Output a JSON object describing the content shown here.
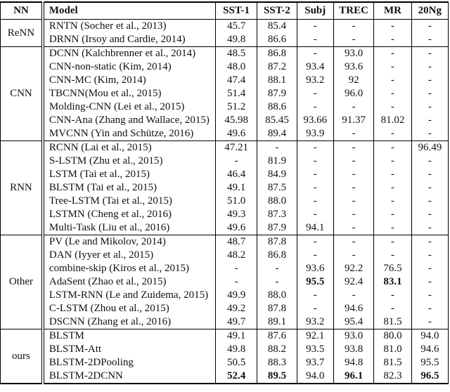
{
  "table": {
    "headers": [
      "NN",
      "Model",
      "SST-1",
      "SST-2",
      "Subj",
      "TREC",
      "MR",
      "20Ng"
    ],
    "groups": [
      {
        "nn": "ReNN",
        "rows": [
          {
            "model": "RNTN (Socher et al., 2013)",
            "values": [
              "45.7",
              "85.4",
              "-",
              "-",
              "-",
              "-"
            ],
            "bold": []
          },
          {
            "model": "DRNN (Irsoy and Cardie, 2014)",
            "values": [
              "49.8",
              "86.6",
              "-",
              "-",
              "-",
              "-"
            ],
            "bold": []
          }
        ]
      },
      {
        "nn": "CNN",
        "rows": [
          {
            "model": "DCNN (Kalchbrenner et al., 2014)",
            "values": [
              "48.5",
              "86.8",
              "-",
              "93.0",
              "-",
              "-"
            ],
            "bold": []
          },
          {
            "model": "CNN-non-static (Kim, 2014)",
            "values": [
              "48.0",
              "87.2",
              "93.4",
              "93.6",
              "-",
              "-"
            ],
            "bold": []
          },
          {
            "model": "CNN-MC (Kim, 2014)",
            "values": [
              "47.4",
              "88.1",
              "93.2",
              "92",
              "-",
              "-"
            ],
            "bold": []
          },
          {
            "model": "TBCNN(Mou et al., 2015)",
            "values": [
              "51.4",
              "87.9",
              "-",
              "96.0",
              "-",
              "-"
            ],
            "bold": []
          },
          {
            "model": "Molding-CNN (Lei et al., 2015)",
            "values": [
              "51.2",
              "88.6",
              "-",
              "-",
              "-",
              "-"
            ],
            "bold": []
          },
          {
            "model": "CNN-Ana (Zhang and Wallace, 2015)",
            "values": [
              "45.98",
              "85.45",
              "93.66",
              "91.37",
              "81.02",
              "-"
            ],
            "bold": []
          },
          {
            "model": "MVCNN (Yin and Schütze, 2016)",
            "values": [
              "49.6",
              "89.4",
              "93.9",
              "-",
              "-",
              "-"
            ],
            "bold": []
          }
        ]
      },
      {
        "nn": "RNN",
        "rows": [
          {
            "model": "RCNN (Lai et al., 2015)",
            "values": [
              "47.21",
              "-",
              "-",
              "-",
              "-",
              "96.49"
            ],
            "bold": []
          },
          {
            "model": "S-LSTM (Zhu et al., 2015)",
            "values": [
              "-",
              "81.9",
              "-",
              "-",
              "-",
              "-"
            ],
            "bold": []
          },
          {
            "model": "LSTM (Tai et al., 2015)",
            "values": [
              "46.4",
              "84.9",
              "-",
              "-",
              "-",
              "-"
            ],
            "bold": []
          },
          {
            "model": "BLSTM (Tai et al., 2015)",
            "values": [
              "49.1",
              "87.5",
              "-",
              "-",
              "-",
              "-"
            ],
            "bold": []
          },
          {
            "model": "Tree-LSTM (Tai et al., 2015)",
            "values": [
              "51.0",
              "88.0",
              "-",
              "-",
              "-",
              "-"
            ],
            "bold": []
          },
          {
            "model": "LSTMN (Cheng et al., 2016)",
            "values": [
              "49.3",
              "87.3",
              "-",
              "-",
              "-",
              "-"
            ],
            "bold": []
          },
          {
            "model": "Multi-Task (Liu et al., 2016)",
            "values": [
              "49.6",
              "87.9",
              "94.1",
              "-",
              "-",
              "-"
            ],
            "bold": []
          }
        ]
      },
      {
        "nn": "Other",
        "rows": [
          {
            "model": "PV (Le and Mikolov, 2014)",
            "values": [
              "48.7",
              "87.8",
              "-",
              "-",
              "-",
              "-"
            ],
            "bold": []
          },
          {
            "model": "DAN (Iyyer et al., 2015)",
            "values": [
              "48.2",
              "86.8",
              "-",
              "-",
              "-",
              "-"
            ],
            "bold": []
          },
          {
            "model": "combine-skip (Kiros et al., 2015)",
            "values": [
              "-",
              "-",
              "93.6",
              "92.2",
              "76.5",
              "-"
            ],
            "bold": []
          },
          {
            "model": "AdaSent (Zhao et al., 2015)",
            "values": [
              "-",
              "-",
              "95.5",
              "92.4",
              "83.1",
              "-"
            ],
            "bold": [
              2,
              4
            ]
          },
          {
            "model": "LSTM-RNN (Le and Zuidema, 2015)",
            "values": [
              "49.9",
              "88.0",
              "-",
              "-",
              "-",
              "-"
            ],
            "bold": []
          },
          {
            "model": "C-LSTM (Zhou et al., 2015)",
            "values": [
              "49.2",
              "87.8",
              "-",
              "94.6",
              "-",
              "-"
            ],
            "bold": []
          },
          {
            "model": "DSCNN (Zhang et al., 2016)",
            "values": [
              "49.7",
              "89.1",
              "93.2",
              "95.4",
              "81.5",
              "-"
            ],
            "bold": []
          }
        ]
      },
      {
        "nn": "ours",
        "rows": [
          {
            "model": "BLSTM",
            "values": [
              "49.1",
              "87.6",
              "92.1",
              "93.0",
              "80.0",
              "94.0"
            ],
            "bold": []
          },
          {
            "model": "BLSTM-Att",
            "values": [
              "49.8",
              "88.2",
              "93.5",
              "93.8",
              "81.0",
              "94.6"
            ],
            "bold": []
          },
          {
            "model": "BLSTM-2DPooling",
            "values": [
              "50.5",
              "88.3",
              "93.7",
              "94.8",
              "81.5",
              "95.5"
            ],
            "bold": []
          },
          {
            "model": "BLSTM-2DCNN",
            "values": [
              "52.4",
              "89.5",
              "94.0",
              "96.1",
              "82.3",
              "96.5"
            ],
            "bold": [
              0,
              1,
              3,
              5
            ]
          }
        ]
      }
    ]
  }
}
